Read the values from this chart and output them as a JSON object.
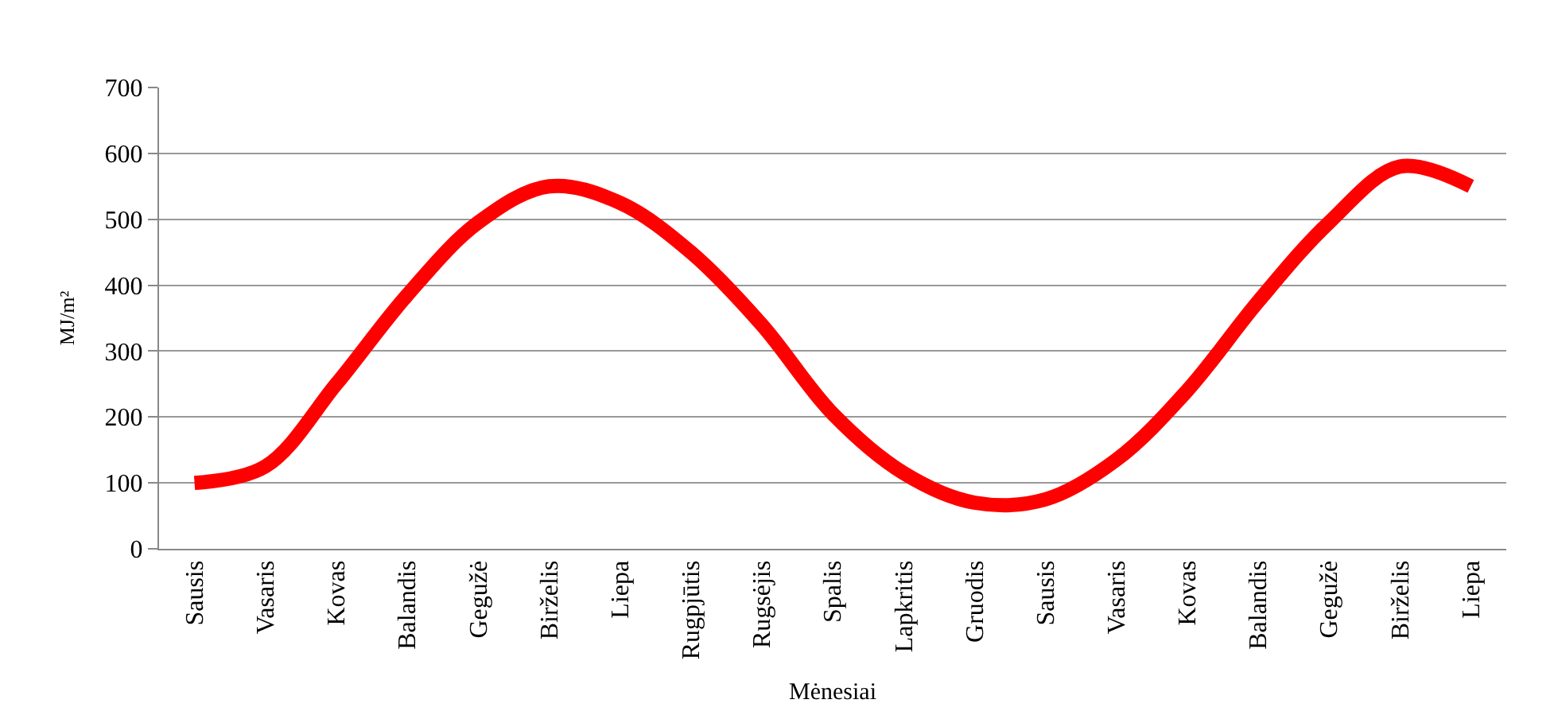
{
  "chart_data": {
    "type": "line",
    "xlabel": "Mėnesiai",
    "ylabel": "MJ/m²",
    "categories": [
      "Sausis",
      "Vasaris",
      "Kovas",
      "Balandis",
      "Gegužė",
      "Birželis",
      "Liepa",
      "Rugpjūtis",
      "Rugsėjis",
      "Spalis",
      "Lapkritis",
      "Gruodis",
      "Sausis",
      "Vasaris",
      "Kovas",
      "Balandis",
      "Gegužė",
      "Birželis",
      "Liepa"
    ],
    "series": [
      {
        "color": "#ff0000",
        "values": [
          100,
          125,
          250,
          385,
          495,
          550,
          525,
          450,
          340,
          205,
          115,
          70,
          75,
          135,
          240,
          375,
          495,
          580,
          550
        ]
      }
    ],
    "ylim": [
      0,
      700
    ],
    "yticks": [
      0,
      100,
      200,
      300,
      400,
      500,
      600,
      700
    ],
    "grid": "y",
    "marker": "none",
    "line_style": "solid"
  }
}
